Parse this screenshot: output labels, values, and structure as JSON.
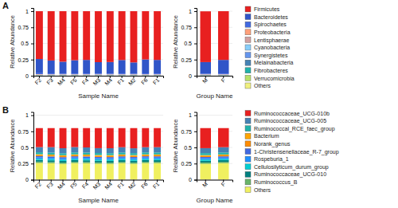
{
  "chart_data": [
    {
      "type": "bar",
      "stacked": true,
      "grid": true,
      "title": "A",
      "xlabel": "Sample Name",
      "ylabel": "Relative Abundance",
      "categories": [
        "F2",
        "F3",
        "M4",
        "F5",
        "F4",
        "M3",
        "M4",
        "F1",
        "M2",
        "F6",
        "F1"
      ],
      "ylim": [
        0,
        1.05
      ],
      "yticks": [
        0,
        0.25,
        0.5,
        0.75,
        1
      ],
      "series": [
        {
          "name": "Others",
          "color": "#f0f080",
          "values": [
            0.004,
            0.004,
            0.004,
            0.004,
            0.004,
            0.004,
            0.004,
            0.004,
            0.004,
            0.004,
            0.004
          ]
        },
        {
          "name": "Verrucomicrobia",
          "color": "#b8e068",
          "values": [
            0.002,
            0.002,
            0.002,
            0.002,
            0.002,
            0.002,
            0.002,
            0.002,
            0.002,
            0.002,
            0.002
          ]
        },
        {
          "name": "Fibrobacteres",
          "color": "#20b2aa",
          "values": [
            0.001,
            0.001,
            0.001,
            0.001,
            0.001,
            0.001,
            0.001,
            0.001,
            0.001,
            0.001,
            0.001
          ]
        },
        {
          "name": "Melainabacteria",
          "color": "#4682b4",
          "values": [
            0.002,
            0.002,
            0.002,
            0.002,
            0.002,
            0.002,
            0.002,
            0.002,
            0.002,
            0.002,
            0.002
          ]
        },
        {
          "name": "Synergistetes",
          "color": "#6495ed",
          "values": [
            0.002,
            0.002,
            0.002,
            0.002,
            0.002,
            0.002,
            0.002,
            0.002,
            0.002,
            0.002,
            0.002
          ]
        },
        {
          "name": "Cyanobacteria",
          "color": "#87cefa",
          "values": [
            0.003,
            0.003,
            0.003,
            0.003,
            0.003,
            0.003,
            0.003,
            0.003,
            0.003,
            0.003,
            0.003
          ]
        },
        {
          "name": "Lentisphaerae",
          "color": "#d2a0a0",
          "values": [
            0.004,
            0.003,
            0.003,
            0.003,
            0.003,
            0.003,
            0.003,
            0.003,
            0.003,
            0.003,
            0.003
          ]
        },
        {
          "name": "Proteobacteria",
          "color": "#ffa07a",
          "values": [
            0.006,
            0.005,
            0.005,
            0.005,
            0.005,
            0.005,
            0.005,
            0.005,
            0.005,
            0.005,
            0.005
          ]
        },
        {
          "name": "Spirochaetes",
          "color": "#4169e1",
          "values": [
            0.015,
            0.014,
            0.01,
            0.013,
            0.013,
            0.01,
            0.01,
            0.013,
            0.01,
            0.014,
            0.013
          ]
        },
        {
          "name": "Bacteroidetes",
          "color": "#3055c8",
          "values": [
            0.22,
            0.2,
            0.185,
            0.205,
            0.21,
            0.178,
            0.18,
            0.208,
            0.174,
            0.216,
            0.21
          ]
        },
        {
          "name": "Firmicutes",
          "color": "#e82020",
          "values": [
            0.741,
            0.764,
            0.783,
            0.76,
            0.755,
            0.79,
            0.788,
            0.757,
            0.794,
            0.748,
            0.755
          ]
        }
      ]
    },
    {
      "type": "bar",
      "stacked": true,
      "grid": true,
      "legend": "right",
      "xlabel": "Group Name",
      "ylabel": "Relative Abundance",
      "categories": [
        "M",
        "F"
      ],
      "ylim": [
        0,
        1.05
      ],
      "yticks": [
        0,
        0.25,
        0.5,
        0.75,
        1
      ],
      "series": [
        {
          "name": "Others",
          "color": "#f0f080",
          "values": [
            0.004,
            0.004
          ]
        },
        {
          "name": "Verrucomicrobia",
          "color": "#b8e068",
          "values": [
            0.002,
            0.002
          ]
        },
        {
          "name": "Fibrobacteres",
          "color": "#20b2aa",
          "values": [
            0.001,
            0.001
          ]
        },
        {
          "name": "Melainabacteria",
          "color": "#4682b4",
          "values": [
            0.002,
            0.002
          ]
        },
        {
          "name": "Synergistetes",
          "color": "#6495ed",
          "values": [
            0.002,
            0.002
          ]
        },
        {
          "name": "Cyanobacteria",
          "color": "#87cefa",
          "values": [
            0.003,
            0.003
          ]
        },
        {
          "name": "Lentisphaerae",
          "color": "#d2a0a0",
          "values": [
            0.003,
            0.003
          ]
        },
        {
          "name": "Proteobacteria",
          "color": "#ffa07a",
          "values": [
            0.005,
            0.005
          ]
        },
        {
          "name": "Spirochaetes",
          "color": "#4169e1",
          "values": [
            0.01,
            0.013
          ]
        },
        {
          "name": "Bacteroidetes",
          "color": "#3055c8",
          "values": [
            0.179,
            0.21
          ]
        },
        {
          "name": "Firmicutes",
          "color": "#e82020",
          "values": [
            0.787,
            0.755
          ]
        }
      ]
    },
    {
      "type": "bar",
      "stacked": true,
      "grid": true,
      "title": "B",
      "xlabel": "Sample Name",
      "ylabel": "Relative Abundance",
      "categories": [
        "F2",
        "F3",
        "M4",
        "F5",
        "F4",
        "M3",
        "M4",
        "F1",
        "M2",
        "F6",
        "F1"
      ],
      "ylim": [
        0,
        1.05
      ],
      "yticks": [
        0,
        0.25,
        0.5,
        0.75,
        1
      ],
      "series": [
        {
          "name": "Others",
          "color": "#f0f060",
          "values": [
            0.26,
            0.255,
            0.245,
            0.258,
            0.255,
            0.248,
            0.246,
            0.257,
            0.247,
            0.258,
            0.257
          ]
        },
        {
          "name": "Ruminococcus_B",
          "color": "#6ab46a",
          "values": [
            0.02,
            0.02,
            0.02,
            0.02,
            0.02,
            0.02,
            0.02,
            0.02,
            0.02,
            0.02,
            0.02
          ]
        },
        {
          "name": "Ruminococcaceae_UCG-010",
          "color": "#008080",
          "values": [
            0.025,
            0.025,
            0.025,
            0.025,
            0.025,
            0.025,
            0.025,
            0.025,
            0.025,
            0.025,
            0.025
          ]
        },
        {
          "name": "Cellulosilyticum_durum_group",
          "color": "#00ced1",
          "values": [
            0.02,
            0.02,
            0.02,
            0.02,
            0.02,
            0.02,
            0.02,
            0.02,
            0.02,
            0.02,
            0.02
          ]
        },
        {
          "name": "Rospeburia_1",
          "color": "#1e90ff",
          "values": [
            0.02,
            0.02,
            0.02,
            0.02,
            0.02,
            0.02,
            0.02,
            0.02,
            0.02,
            0.02,
            0.02
          ]
        },
        {
          "name": "1-Christensenellaceae_R-7_group",
          "color": "#4169e1",
          "values": [
            0.02,
            0.02,
            0.02,
            0.02,
            0.02,
            0.02,
            0.02,
            0.02,
            0.02,
            0.02,
            0.02
          ]
        },
        {
          "name": "Norank_genus",
          "color": "#ff8c00",
          "values": [
            0.015,
            0.015,
            0.015,
            0.015,
            0.015,
            0.015,
            0.015,
            0.015,
            0.015,
            0.015,
            0.015
          ]
        },
        {
          "name": "Bacterium",
          "color": "#ffa500",
          "values": [
            0.015,
            0.015,
            0.015,
            0.015,
            0.015,
            0.015,
            0.015,
            0.015,
            0.015,
            0.015,
            0.015
          ]
        },
        {
          "name": "Ruminococcal_RCE_faec_group",
          "color": "#20b2aa",
          "values": [
            0.03,
            0.03,
            0.03,
            0.03,
            0.03,
            0.03,
            0.03,
            0.03,
            0.03,
            0.03,
            0.03
          ]
        },
        {
          "name": "Ruminococcaceae_UCG-005",
          "color": "#4682b4",
          "values": [
            0.08,
            0.085,
            0.078,
            0.083,
            0.08,
            0.076,
            0.077,
            0.082,
            0.075,
            0.081,
            0.082
          ]
        },
        {
          "name": "Ruminococcaceae_UCG-010b",
          "color": "#e82020",
          "values": [
            0.295,
            0.295,
            0.312,
            0.294,
            0.3,
            0.311,
            0.312,
            0.296,
            0.313,
            0.296,
            0.296
          ]
        }
      ]
    },
    {
      "type": "bar",
      "stacked": true,
      "grid": true,
      "legend": "right",
      "xlabel": "Group Name",
      "ylabel": "Relative Abundance",
      "categories": [
        "M",
        "F"
      ],
      "ylim": [
        0,
        1.05
      ],
      "yticks": [
        0,
        0.25,
        0.5,
        0.75,
        1
      ],
      "series": [
        {
          "name": "Others",
          "color": "#f0f060",
          "values": [
            0.247,
            0.257
          ]
        },
        {
          "name": "Ruminococcus_B",
          "color": "#6ab46a",
          "values": [
            0.02,
            0.02
          ]
        },
        {
          "name": "Ruminococcaceae_UCG-010",
          "color": "#008080",
          "values": [
            0.025,
            0.025
          ]
        },
        {
          "name": "Cellulosilyticum_durum_group",
          "color": "#00ced1",
          "values": [
            0.02,
            0.02
          ]
        },
        {
          "name": "Rospeburia_1",
          "color": "#1e90ff",
          "values": [
            0.02,
            0.02
          ]
        },
        {
          "name": "1-Christensenellaceae_R-7_group",
          "color": "#4169e1",
          "values": [
            0.02,
            0.02
          ]
        },
        {
          "name": "Norank_genus",
          "color": "#ff8c00",
          "values": [
            0.015,
            0.015
          ]
        },
        {
          "name": "Bacterium",
          "color": "#ffa500",
          "values": [
            0.015,
            0.015
          ]
        },
        {
          "name": "Ruminococcal_RCE_faec_group",
          "color": "#20b2aa",
          "values": [
            0.03,
            0.03
          ]
        },
        {
          "name": "Ruminococcaceae_UCG-005",
          "color": "#4682b4",
          "values": [
            0.077,
            0.082
          ]
        },
        {
          "name": "Ruminococcaceae_UCG-010b",
          "color": "#e82020",
          "values": [
            0.311,
            0.296
          ]
        }
      ]
    }
  ]
}
